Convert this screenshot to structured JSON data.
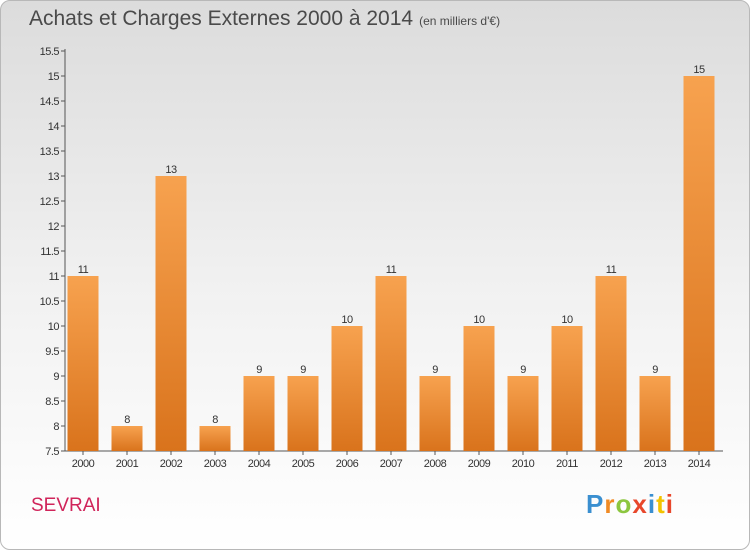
{
  "header": {
    "title": "Achats et Charges Externes 2000 à 2014",
    "subtitle": "(en milliers d'€)"
  },
  "footer": {
    "commune": "SEVRAI",
    "logo": "Proxiti"
  },
  "colors": {
    "bar_top": "#f7a24f",
    "bar_bottom": "#d9731c",
    "commune": "#d0245a"
  },
  "chart_data": {
    "type": "bar",
    "title": "Achats et Charges Externes 2000 à 2014",
    "subtitle": "(en milliers d'€)",
    "xlabel": "",
    "ylabel": "",
    "categories": [
      "2000",
      "2001",
      "2002",
      "2003",
      "2004",
      "2005",
      "2006",
      "2007",
      "2008",
      "2009",
      "2010",
      "2011",
      "2012",
      "2013",
      "2014"
    ],
    "values": [
      11,
      8,
      13,
      8,
      9,
      9,
      10,
      11,
      9,
      10,
      9,
      10,
      11,
      9,
      15
    ],
    "data_labels": [
      "11",
      "8",
      "13",
      "8",
      "9",
      "9",
      "10",
      "11",
      "9",
      "10",
      "9",
      "10",
      "11",
      "9",
      "15"
    ],
    "ylim": [
      7.5,
      15.5
    ],
    "yticks": [
      "7.5",
      "8",
      "8.5",
      "9",
      "9.5",
      "10",
      "10.5",
      "11",
      "11.5",
      "12",
      "12.5",
      "13",
      "13.5",
      "14",
      "14.5",
      "15",
      "15.5"
    ],
    "grid": false,
    "legend": "none"
  }
}
